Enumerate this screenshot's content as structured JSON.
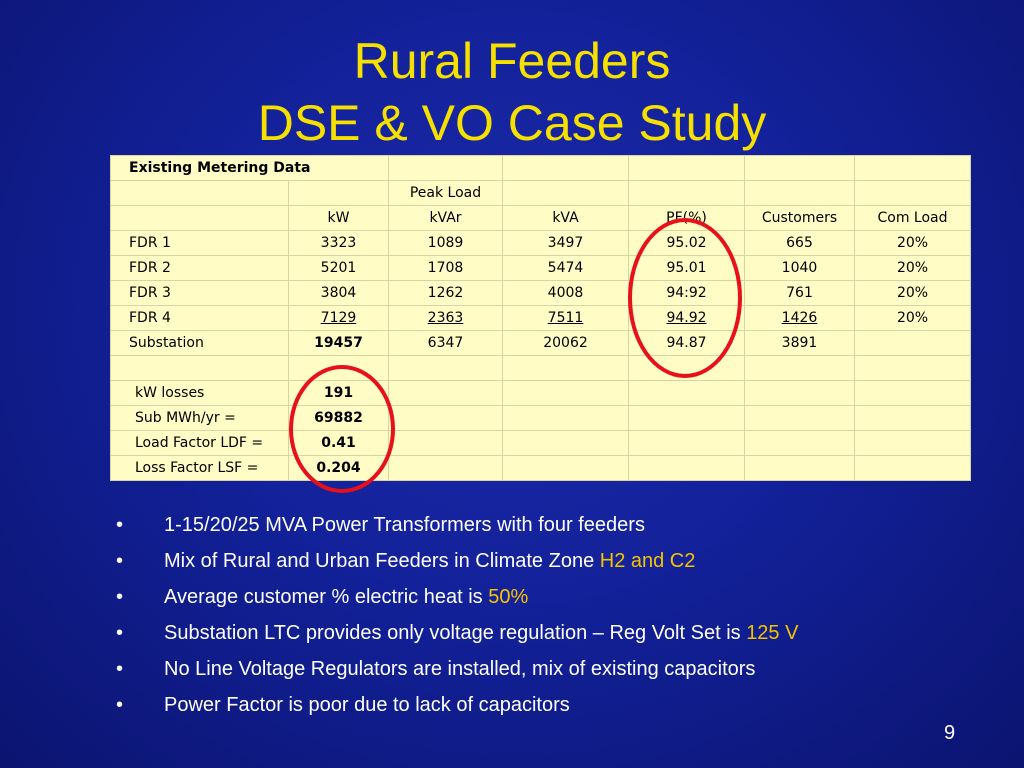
{
  "slide": {
    "title_line1": "Rural Feeders",
    "title_line2": "DSE & VO Case Study",
    "page_number": "9"
  },
  "table": {
    "title": "Existing Metering Data",
    "group_header": "Peak Load",
    "headers": [
      "kW",
      "kVAr",
      "kVA",
      "PF(%)",
      "Customers",
      "Com Load"
    ],
    "rows": [
      {
        "label": "FDR 1",
        "kw": "3323",
        "kvar": "1089",
        "kva": "3497",
        "pf": "95.02",
        "customers": "665",
        "com": "20%"
      },
      {
        "label": "FDR 2",
        "kw": "5201",
        "kvar": "1708",
        "kva": "5474",
        "pf": "95.01",
        "customers": "1040",
        "com": "20%"
      },
      {
        "label": "FDR 3",
        "kw": "3804",
        "kvar": "1262",
        "kva": "4008",
        "pf": "94:92",
        "customers": "761",
        "com": "20%"
      },
      {
        "label": "FDR 4",
        "kw": "7129",
        "kvar": "2363",
        "kva": "7511",
        "pf": "94.92",
        "customers": "1426",
        "com": "20%"
      },
      {
        "label": "Substation",
        "kw": "19457",
        "kvar": "6347",
        "kva": "20062",
        "pf": "94.87",
        "customers": "3891",
        "com": ""
      }
    ],
    "summary": [
      {
        "label": "kW losses",
        "value": "191"
      },
      {
        "label": "Sub MWh/yr =",
        "value": "69882"
      },
      {
        "label": "Load Factor LDF =",
        "value": "0.41"
      },
      {
        "label": "Loss Factor LSF =",
        "value": "0.204"
      }
    ]
  },
  "bullets": [
    {
      "text": "1-15/20/25 MVA Power Transformers with four feeders",
      "highlight": ""
    },
    {
      "text": "Mix of Rural and Urban Feeders in Climate Zone ",
      "highlight": "H2 and C2"
    },
    {
      "text": "Average customer % electric heat is ",
      "highlight": "50%"
    },
    {
      "text": "Substation LTC provides only voltage regulation – Reg Volt Set is ",
      "highlight": "125 V"
    },
    {
      "text": "No Line Voltage Regulators are installed, mix of existing capacitors",
      "highlight": ""
    },
    {
      "text": "Power Factor is poor due to lack of capacitors",
      "highlight": ""
    }
  ],
  "bullet_symbol": "•",
  "colors": {
    "background": "#13219a",
    "title": "#f5e000",
    "highlight": "#f5c400",
    "table_bg": "#fffcc5",
    "circle": "#e8101a"
  }
}
